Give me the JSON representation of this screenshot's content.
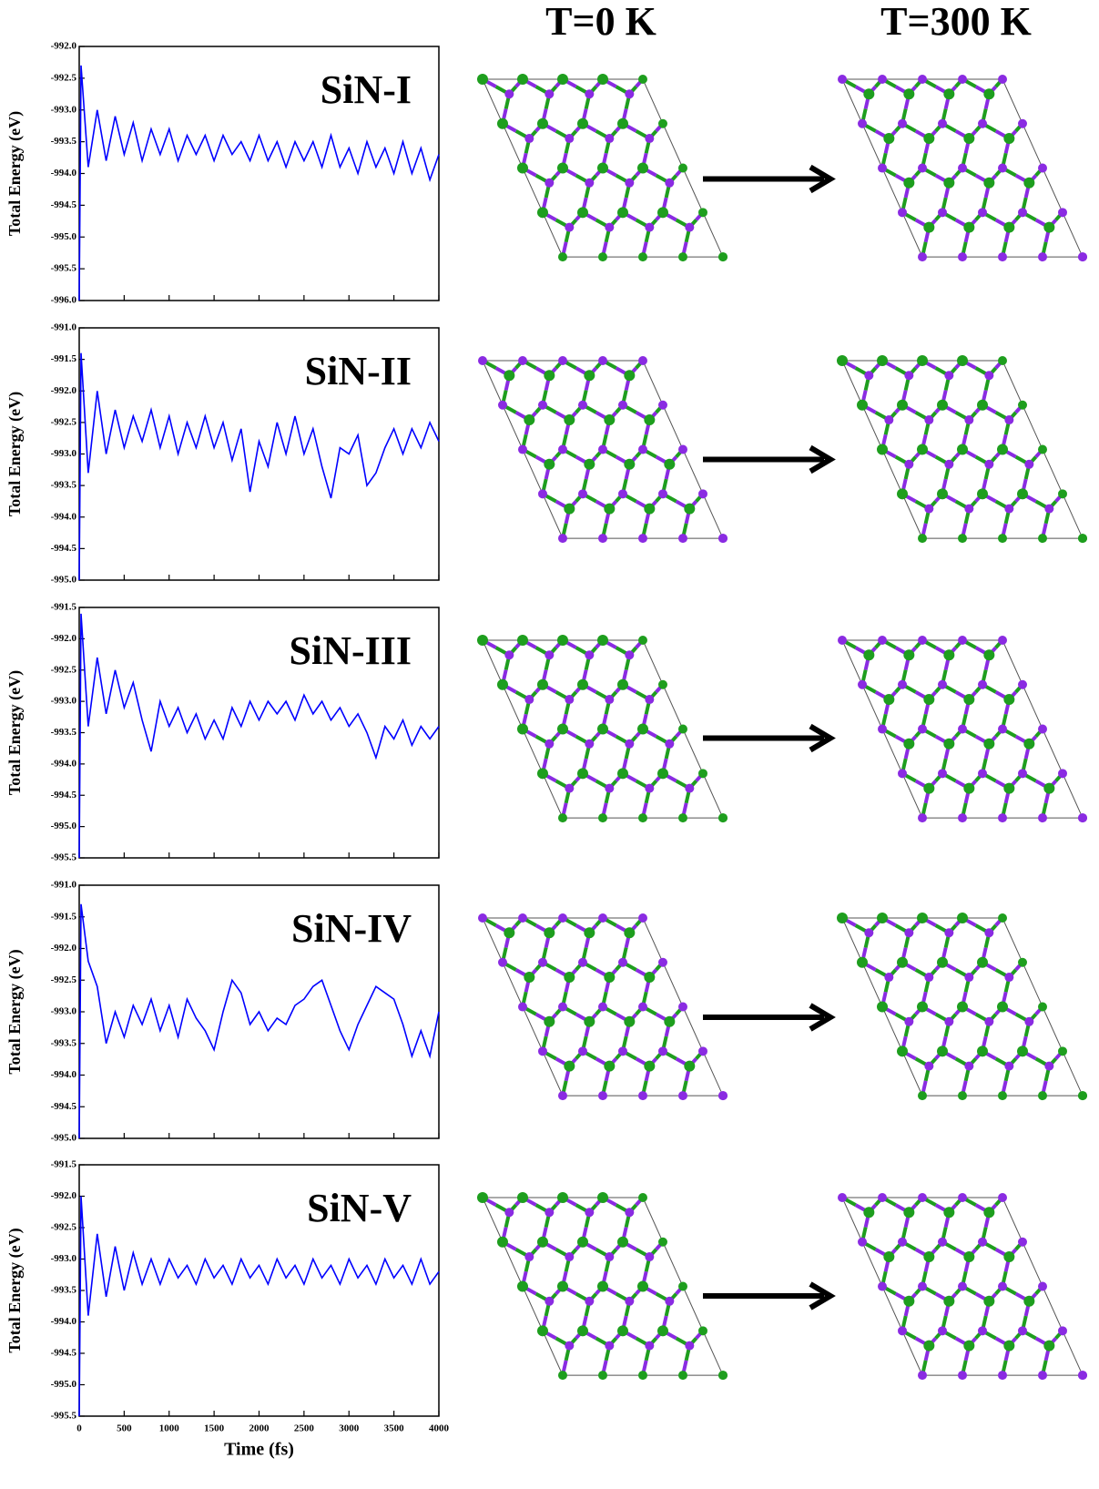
{
  "structure_headers": [
    "T=0 K",
    "T=300 K"
  ],
  "chart_data": [
    {
      "type": "line",
      "title": "SiN-I",
      "ylabel": "Total Energy (eV)",
      "color": "#0000ff",
      "xlim": [
        0,
        4000
      ],
      "ylim": [
        -996,
        -992
      ],
      "yticks": [
        {
          "value": -992,
          "label": "-992.0"
        },
        -992.5,
        {
          "value": -993,
          "label": "-993.0"
        },
        -993.5,
        {
          "value": -994,
          "label": "-994.0"
        },
        -994.5,
        {
          "value": -995,
          "label": "-995.0"
        },
        -995.5,
        {
          "value": -996,
          "label": "-996.0"
        }
      ],
      "x": [
        0,
        20,
        100,
        200,
        300,
        400,
        500,
        600,
        700,
        800,
        900,
        1000,
        1100,
        1200,
        1300,
        1400,
        1500,
        1600,
        1700,
        1800,
        1900,
        2000,
        2100,
        2200,
        2300,
        2400,
        2500,
        2600,
        2700,
        2800,
        2900,
        3000,
        3100,
        3200,
        3300,
        3400,
        3500,
        3600,
        3700,
        3800,
        3900,
        4000
      ],
      "values": [
        -996,
        -992.3,
        -993.9,
        -993.0,
        -993.8,
        -993.1,
        -993.7,
        -993.2,
        -993.8,
        -993.3,
        -993.7,
        -993.3,
        -993.8,
        -993.4,
        -993.7,
        -993.4,
        -993.8,
        -993.4,
        -993.7,
        -993.5,
        -993.8,
        -993.4,
        -993.8,
        -993.5,
        -993.9,
        -993.5,
        -993.8,
        -993.5,
        -993.9,
        -993.4,
        -993.9,
        -993.6,
        -994.0,
        -993.5,
        -993.9,
        -993.6,
        -994.0,
        -993.5,
        -994.0,
        -993.6,
        -994.1,
        -993.7
      ]
    },
    {
      "type": "line",
      "title": "SiN-II",
      "ylabel": "Total Energy (eV)",
      "color": "#0000ff",
      "xlim": [
        0,
        4000
      ],
      "ylim": [
        -995,
        -991
      ],
      "yticks": [
        {
          "value": -991,
          "label": "-991.0"
        },
        -991.5,
        {
          "value": -992,
          "label": "-992.0"
        },
        -992.5,
        {
          "value": -993,
          "label": "-993.0"
        },
        -993.5,
        {
          "value": -994,
          "label": "-994.0"
        },
        -994.5,
        {
          "value": -995,
          "label": "-995.0"
        }
      ],
      "x": [
        0,
        20,
        100,
        200,
        300,
        400,
        500,
        600,
        700,
        800,
        900,
        1000,
        1100,
        1200,
        1300,
        1400,
        1500,
        1600,
        1700,
        1800,
        1900,
        2000,
        2100,
        2200,
        2300,
        2400,
        2500,
        2600,
        2700,
        2800,
        2900,
        3000,
        3100,
        3200,
        3300,
        3400,
        3500,
        3600,
        3700,
        3800,
        3900,
        4000
      ],
      "values": [
        -995,
        -991.4,
        -993.3,
        -992.0,
        -993.0,
        -992.3,
        -992.9,
        -992.4,
        -992.8,
        -992.3,
        -992.9,
        -992.4,
        -993.0,
        -992.5,
        -992.9,
        -992.4,
        -992.9,
        -992.5,
        -993.1,
        -992.6,
        -993.6,
        -992.8,
        -993.2,
        -992.5,
        -993.0,
        -992.4,
        -993.0,
        -992.6,
        -993.2,
        -993.7,
        -992.9,
        -993.0,
        -992.7,
        -993.5,
        -993.3,
        -992.9,
        -992.6,
        -993.0,
        -992.6,
        -992.9,
        -992.5,
        -992.8
      ]
    },
    {
      "type": "line",
      "title": "SiN-III",
      "ylabel": "Total Energy (eV)",
      "color": "#0000ff",
      "xlim": [
        0,
        4000
      ],
      "ylim": [
        -995.5,
        -991.5
      ],
      "yticks": [
        -991.5,
        {
          "value": -992,
          "label": "-992.0"
        },
        -992.5,
        {
          "value": -993,
          "label": "-993.0"
        },
        -993.5,
        {
          "value": -994,
          "label": "-994.0"
        },
        -994.5,
        {
          "value": -995,
          "label": "-995.0"
        },
        -995.5
      ],
      "x": [
        0,
        20,
        100,
        200,
        300,
        400,
        500,
        600,
        700,
        800,
        900,
        1000,
        1100,
        1200,
        1300,
        1400,
        1500,
        1600,
        1700,
        1800,
        1900,
        2000,
        2100,
        2200,
        2300,
        2400,
        2500,
        2600,
        2700,
        2800,
        2900,
        3000,
        3100,
        3200,
        3300,
        3400,
        3500,
        3600,
        3700,
        3800,
        3900,
        4000
      ],
      "values": [
        -995.5,
        -991.6,
        -993.4,
        -992.3,
        -993.2,
        -992.5,
        -993.1,
        -992.7,
        -993.3,
        -993.8,
        -993.0,
        -993.4,
        -993.1,
        -993.5,
        -993.2,
        -993.6,
        -993.3,
        -993.6,
        -993.1,
        -993.4,
        -993.0,
        -993.3,
        -993.0,
        -993.2,
        -993.0,
        -993.3,
        -992.9,
        -993.2,
        -993.0,
        -993.3,
        -993.1,
        -993.4,
        -993.2,
        -993.5,
        -993.9,
        -993.4,
        -993.6,
        -993.3,
        -993.7,
        -993.4,
        -993.6,
        -993.4
      ]
    },
    {
      "type": "line",
      "title": "SiN-IV",
      "ylabel": "Total Energy (eV)",
      "color": "#0000ff",
      "xlim": [
        0,
        4000
      ],
      "ylim": [
        -995,
        -991
      ],
      "yticks": [
        {
          "value": -991,
          "label": "-991.0"
        },
        -991.5,
        {
          "value": -992,
          "label": "-992.0"
        },
        -992.5,
        {
          "value": -993,
          "label": "-993.0"
        },
        -993.5,
        {
          "value": -994,
          "label": "-994.0"
        },
        -994.5,
        {
          "value": -995,
          "label": "-995.0"
        }
      ],
      "x": [
        0,
        20,
        100,
        200,
        300,
        400,
        500,
        600,
        700,
        800,
        900,
        1000,
        1100,
        1200,
        1300,
        1400,
        1500,
        1600,
        1700,
        1800,
        1900,
        2000,
        2100,
        2200,
        2300,
        2400,
        2500,
        2600,
        2700,
        2800,
        2900,
        3000,
        3100,
        3200,
        3300,
        3400,
        3500,
        3600,
        3700,
        3800,
        3900,
        4000
      ],
      "values": [
        -995,
        -991.3,
        -992.2,
        -992.6,
        -993.5,
        -993.0,
        -993.4,
        -992.9,
        -993.2,
        -992.8,
        -993.3,
        -992.9,
        -993.4,
        -992.8,
        -993.1,
        -993.3,
        -993.6,
        -993.0,
        -992.5,
        -992.7,
        -993.2,
        -993.0,
        -993.3,
        -993.1,
        -993.2,
        -992.9,
        -992.8,
        -992.6,
        -992.5,
        -992.9,
        -993.3,
        -993.6,
        -993.2,
        -992.9,
        -992.6,
        -992.7,
        -992.8,
        -993.2,
        -993.7,
        -993.3,
        -993.7,
        -993.0
      ]
    },
    {
      "type": "line",
      "title": "SiN-V",
      "ylabel": "Total Energy (eV)",
      "xlabel": "Time (fs)",
      "color": "#0000ff",
      "xlim": [
        0,
        4000
      ],
      "ylim": [
        -995.5,
        -991.5
      ],
      "xticks": [
        0,
        500,
        1000,
        1500,
        2000,
        2500,
        3000,
        3500,
        4000
      ],
      "yticks": [
        -991.5,
        {
          "value": -992,
          "label": "-992.0"
        },
        -992.5,
        {
          "value": -993,
          "label": "-993.0"
        },
        -993.5,
        {
          "value": -994,
          "label": "-994.0"
        },
        -994.5,
        {
          "value": -995,
          "label": "-995.0"
        },
        -995.5
      ],
      "x": [
        0,
        20,
        100,
        200,
        300,
        400,
        500,
        600,
        700,
        800,
        900,
        1000,
        1100,
        1200,
        1300,
        1400,
        1500,
        1600,
        1700,
        1800,
        1900,
        2000,
        2100,
        2200,
        2300,
        2400,
        2500,
        2600,
        2700,
        2800,
        2900,
        3000,
        3100,
        3200,
        3300,
        3400,
        3500,
        3600,
        3700,
        3800,
        3900,
        4000
      ],
      "values": [
        -995.5,
        -992.0,
        -993.9,
        -992.6,
        -993.6,
        -992.8,
        -993.5,
        -992.9,
        -993.4,
        -993.0,
        -993.4,
        -993.0,
        -993.3,
        -993.1,
        -993.4,
        -993.0,
        -993.3,
        -993.1,
        -993.4,
        -993.0,
        -993.3,
        -993.1,
        -993.4,
        -993.0,
        -993.3,
        -993.1,
        -993.4,
        -993.0,
        -993.3,
        -993.1,
        -993.4,
        -993.0,
        -993.3,
        -993.1,
        -993.4,
        -993.0,
        -993.3,
        -993.1,
        -993.4,
        -993.0,
        -993.4,
        -993.2
      ]
    }
  ]
}
